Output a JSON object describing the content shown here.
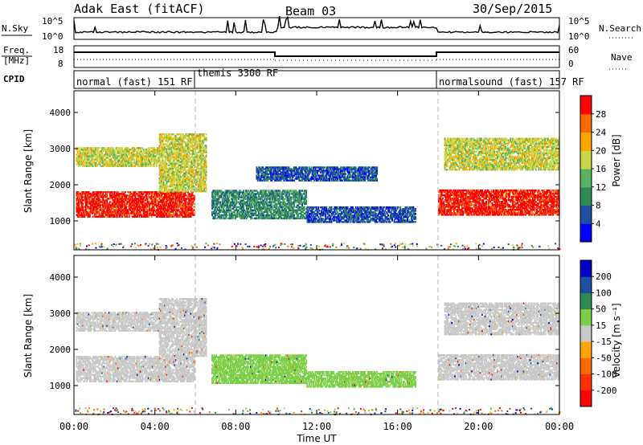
{
  "header": {
    "site": "Adak East (fitACF)",
    "beam": "Beam 03",
    "date": "30/Sep/2015"
  },
  "noise_panel": {
    "left_label": "N.Sky",
    "right_label": "N.Search",
    "left_ticks": [
      "10^5",
      "10^0"
    ],
    "right_ticks": [
      "10^5",
      "10^0"
    ]
  },
  "freq_panel": {
    "left_label_1": "Freq.",
    "left_label_2": "[MHz]",
    "right_label": "Nave",
    "left_ticks": [
      "18",
      "8"
    ],
    "right_ticks": [
      "60",
      "0"
    ]
  },
  "cpid_panel": {
    "label": "CPID",
    "programs": [
      {
        "name": "normal (fast) 151 RF",
        "start": "00:00",
        "end": "06:00"
      },
      {
        "name": "themis 3300 RF",
        "start": "06:00",
        "end": "18:00"
      },
      {
        "name": "normalsound (fast) 157 RF",
        "start": "18:00",
        "end": "24:00"
      }
    ]
  },
  "colors": {
    "bg": "#ffffff",
    "ground_scatter": "#bdbdbd",
    "dashed_divider": "#b4b4b4"
  },
  "chart_data": [
    {
      "type": "heatmap",
      "name": "power",
      "ylabel": "Slant Range [km]",
      "ylim": [
        200,
        4600
      ],
      "yticks": [
        "1000",
        "2000",
        "3000",
        "4000"
      ],
      "colorbar": {
        "label": "Power [dB]",
        "ticks": [
          "4",
          "8",
          "12",
          "16",
          "20",
          "24",
          "28"
        ],
        "colors": [
          "#0000ff",
          "#1c4fa0",
          "#2e8b57",
          "#57b35f",
          "#c8d848",
          "#ffa500",
          "#ff6a00",
          "#ff0000"
        ]
      },
      "bands": [
        {
          "t0": 0.1,
          "t1": 5.9,
          "r0": 1100,
          "r1": 1800,
          "level": 7
        },
        {
          "t0": 0.1,
          "t1": 4.2,
          "r0": 2500,
          "r1": 3000,
          "level": 4
        },
        {
          "t0": 4.2,
          "t1": 6.5,
          "r0": 1800,
          "r1": 3400,
          "level": 4
        },
        {
          "t0": 6.8,
          "t1": 11.5,
          "r0": 1050,
          "r1": 1850,
          "level": 2
        },
        {
          "t0": 11.5,
          "t1": 16.9,
          "r0": 950,
          "r1": 1400,
          "level": 1
        },
        {
          "t0": 9.0,
          "t1": 15.0,
          "r0": 2100,
          "r1": 2500,
          "level": 1
        },
        {
          "t0": 18.0,
          "t1": 24.0,
          "r0": 1150,
          "r1": 1850,
          "level": 7
        },
        {
          "t0": 18.3,
          "t1": 24.0,
          "r0": 2400,
          "r1": 3300,
          "level": 4
        }
      ]
    },
    {
      "type": "heatmap",
      "name": "velocity",
      "xlabel": "Time UT",
      "xticks": [
        "00:00",
        "04:00",
        "08:00",
        "12:00",
        "16:00",
        "20:00",
        "00:00"
      ],
      "xlim": [
        0,
        24
      ],
      "ylabel": "Slant Range [km]",
      "ylim": [
        200,
        4600
      ],
      "yticks": [
        "1000",
        "2000",
        "3000",
        "4000"
      ],
      "colorbar": {
        "label": "Velocity [m s⁻¹]",
        "ticks": [
          "200",
          "100",
          "50",
          "15",
          "-15",
          "-50",
          "-100",
          "-200"
        ],
        "colors": [
          "#0000c8",
          "#1c4fa0",
          "#2e8b57",
          "#7ccf48",
          "#c8c8c8",
          "#ffa500",
          "#ff6a00",
          "#ff3000",
          "#ff0000"
        ]
      },
      "bands": [
        {
          "t0": 0.1,
          "t1": 5.9,
          "r0": 1100,
          "r1": 1800,
          "level": 4
        },
        {
          "t0": 0.1,
          "t1": 4.2,
          "r0": 2500,
          "r1": 3000,
          "level": 4
        },
        {
          "t0": 4.2,
          "t1": 6.5,
          "r0": 1800,
          "r1": 3400,
          "level": 4
        },
        {
          "t0": 6.8,
          "t1": 11.5,
          "r0": 1050,
          "r1": 1850,
          "level": 3
        },
        {
          "t0": 11.5,
          "t1": 16.9,
          "r0": 950,
          "r1": 1400,
          "level": 3
        },
        {
          "t0": 18.0,
          "t1": 24.0,
          "r0": 1150,
          "r1": 1850,
          "level": 4
        },
        {
          "t0": 18.3,
          "t1": 24.0,
          "r0": 2400,
          "r1": 3300,
          "level": 4
        }
      ]
    }
  ]
}
